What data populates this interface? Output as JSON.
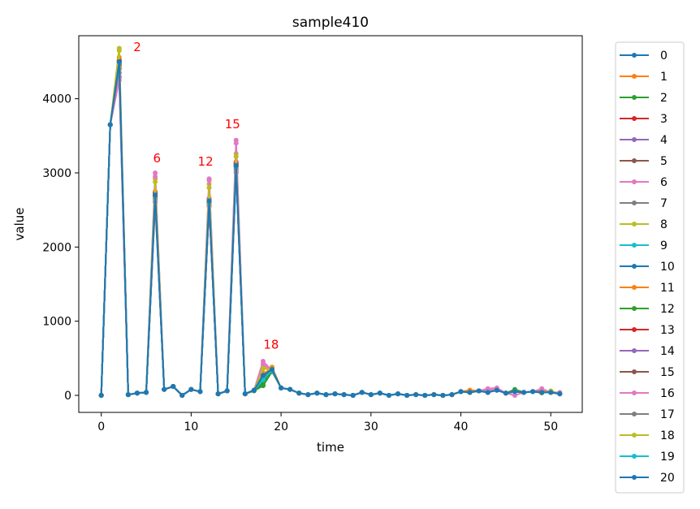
{
  "chart_data": {
    "type": "line",
    "title": "sample410",
    "xlabel": "time",
    "ylabel": "value",
    "xlim": [
      -2.5,
      53.5
    ],
    "ylim": [
      -230,
      4850
    ],
    "xticks": [
      0,
      10,
      20,
      30,
      40,
      50
    ],
    "yticks": [
      0,
      1000,
      2000,
      3000,
      4000
    ],
    "grid": false,
    "legend_position": "outside-right",
    "x": [
      0,
      1,
      2,
      3,
      4,
      5,
      6,
      7,
      8,
      9,
      10,
      11,
      12,
      13,
      14,
      15,
      16,
      17,
      18,
      19,
      20,
      21,
      22,
      23,
      24,
      25,
      26,
      27,
      28,
      29,
      30,
      31,
      32,
      33,
      34,
      35,
      36,
      37,
      38,
      39,
      40,
      41,
      42,
      43,
      44,
      45,
      46,
      47,
      48,
      49,
      50,
      51
    ],
    "base_values": [
      0,
      3650,
      4500,
      10,
      30,
      40,
      2700,
      80,
      120,
      0,
      80,
      50,
      2620,
      20,
      60,
      3100,
      20,
      70,
      180,
      340,
      100,
      80,
      30,
      10,
      30,
      10,
      20,
      10,
      0,
      40,
      10,
      30,
      0,
      20,
      0,
      10,
      0,
      10,
      0,
      10,
      50,
      40,
      60,
      40,
      70,
      30,
      50,
      40,
      50,
      40,
      40,
      20
    ],
    "series": [
      {
        "name": "0",
        "color": "#1f77b4",
        "peaks": {
          "2": 4480,
          "6": 2700,
          "12": 2620,
          "15": 3100
        }
      },
      {
        "name": "1",
        "color": "#ff7f0e",
        "peaks": {
          "2": 4560,
          "6": 2750,
          "12": 2650,
          "15": 3150,
          "18": 280,
          "19": 380,
          "41": 70,
          "43": 80,
          "49": 70
        }
      },
      {
        "name": "2",
        "color": "#2ca02c",
        "peaks": {
          "2": 4500,
          "6": 2720,
          "12": 2630,
          "15": 3120,
          "17": 60,
          "18": 130,
          "19": 320,
          "46": 80
        }
      },
      {
        "name": "3",
        "color": "#d62728",
        "peaks": {
          "2": 4520,
          "6": 2730,
          "12": 2640,
          "15": 3140,
          "18": 220,
          "19": 350
        }
      },
      {
        "name": "4",
        "color": "#9467bd",
        "peaks": {
          "2": 4300,
          "6": 2600,
          "12": 2550,
          "15": 3000,
          "18": 250,
          "19": 330
        }
      },
      {
        "name": "5",
        "color": "#8c564b",
        "peaks": {
          "2": 4450,
          "6": 2680,
          "12": 2600,
          "15": 3080,
          "18": 240
        }
      },
      {
        "name": "6",
        "color": "#e377c2",
        "peaks": {
          "2": 4250,
          "6": 3000,
          "12": 2920,
          "15": 3440,
          "18": 460,
          "19": 330,
          "43": 90,
          "44": 100,
          "46": 0,
          "49": 90,
          "51": 40
        }
      },
      {
        "name": "7",
        "color": "#7f7f7f",
        "peaks": {
          "2": 4400,
          "6": 2650,
          "12": 2580,
          "15": 3050,
          "18": 260
        }
      },
      {
        "name": "8",
        "color": "#bcbd22",
        "peaks": {
          "2": 4680,
          "6": 2920,
          "12": 2850,
          "15": 3260,
          "18": 380,
          "19": 360,
          "43": 60,
          "49": 30,
          "50": 60
        }
      },
      {
        "name": "9",
        "color": "#17becf",
        "peaks": {
          "2": 4490,
          "6": 2710,
          "12": 2625,
          "15": 3105,
          "18": 200
        }
      },
      {
        "name": "10",
        "color": "#1f77b4",
        "peaks": {
          "2": 4500,
          "6": 2700,
          "12": 2630,
          "15": 3100
        }
      },
      {
        "name": "11",
        "color": "#ff7f0e",
        "peaks": {
          "2": 4530,
          "6": 2740,
          "12": 2660,
          "15": 3130,
          "18": 300
        }
      },
      {
        "name": "12",
        "color": "#2ca02c",
        "peaks": {
          "2": 4510,
          "6": 2725,
          "12": 2635,
          "15": 3115,
          "18": 150,
          "19": 330
        }
      },
      {
        "name": "13",
        "color": "#d62728",
        "peaks": {
          "2": 4515,
          "6": 2728,
          "12": 2638,
          "15": 3125,
          "18": 230
        }
      },
      {
        "name": "14",
        "color": "#9467bd",
        "peaks": {
          "2": 4350,
          "6": 2620,
          "12": 2560,
          "15": 3020,
          "18": 250
        }
      },
      {
        "name": "15",
        "color": "#8c564b",
        "peaks": {
          "2": 4460,
          "6": 2690,
          "12": 2610,
          "15": 3090,
          "18": 240
        }
      },
      {
        "name": "16",
        "color": "#e377c2",
        "peaks": {
          "2": 4280,
          "6": 2950,
          "12": 2900,
          "15": 3400,
          "18": 420,
          "43": 80
        }
      },
      {
        "name": "17",
        "color": "#7f7f7f",
        "peaks": {
          "2": 4420,
          "6": 2660,
          "12": 2590,
          "15": 3060,
          "18": 260
        }
      },
      {
        "name": "18",
        "color": "#bcbd22",
        "peaks": {
          "2": 4650,
          "6": 2880,
          "12": 2800,
          "15": 3220,
          "18": 360,
          "19": 350
        }
      },
      {
        "name": "19",
        "color": "#17becf",
        "peaks": {
          "2": 4495,
          "6": 2705,
          "12": 2628,
          "15": 3102,
          "18": 210
        }
      },
      {
        "name": "20",
        "color": "#1f77b4",
        "peaks": {
          "2": 4500,
          "6": 2700,
          "12": 2620,
          "15": 3100,
          "18": 270,
          "19": 350
        }
      }
    ],
    "annotations": [
      {
        "text": "2",
        "x": 4.0,
        "y": 4640,
        "color": "#ff0000"
      },
      {
        "text": "6",
        "x": 6.2,
        "y": 3140,
        "color": "#ff0000"
      },
      {
        "text": "12",
        "x": 11.6,
        "y": 3100,
        "color": "#ff0000"
      },
      {
        "text": "15",
        "x": 14.6,
        "y": 3600,
        "color": "#ff0000"
      },
      {
        "text": "18",
        "x": 18.9,
        "y": 630,
        "color": "#ff0000"
      }
    ]
  }
}
